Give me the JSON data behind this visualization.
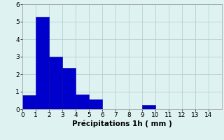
{
  "bar_values": [
    0.8,
    5.3,
    3.0,
    2.35,
    0.85,
    0.55,
    0.0,
    0.0,
    0.0,
    0.25,
    0.0,
    0.0,
    0.0,
    0.0,
    0.0
  ],
  "bar_color": "#0000cc",
  "bar_edge_color": "#0000aa",
  "xlabel": "Précipitations 1h ( mm )",
  "xlim": [
    0,
    15
  ],
  "ylim": [
    0,
    6.0
  ],
  "yticks": [
    0,
    1,
    2,
    3,
    4,
    5,
    6
  ],
  "xticks": [
    0,
    1,
    2,
    3,
    4,
    5,
    6,
    7,
    8,
    9,
    10,
    11,
    12,
    13,
    14
  ],
  "background_color": "#dff2f2",
  "grid_color": "#aacaca",
  "xlabel_fontsize": 7.5,
  "tick_fontsize": 6.5
}
